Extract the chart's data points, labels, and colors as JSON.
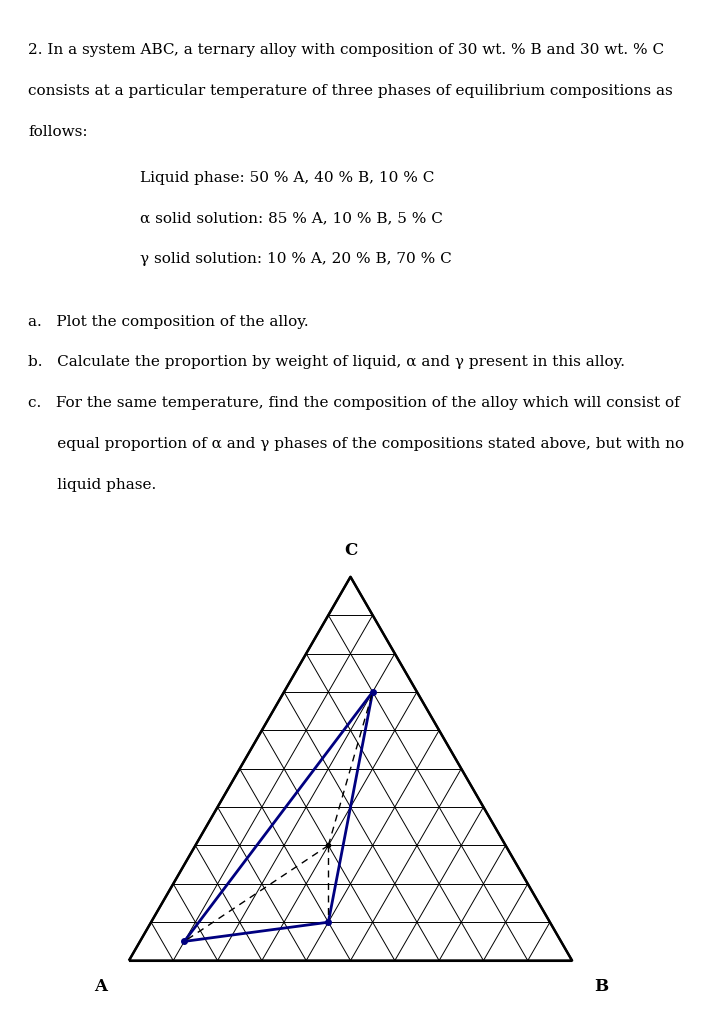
{
  "line1": "2. In a system ABC, a ternary alloy with composition of 30 wt. % B and 30 wt. % C",
  "line2": "consists at a particular temperature of three phases of equilibrium compositions as",
  "line3": "follows:",
  "indent_lines": [
    "Liquid phase: 50 % A, 40 % B, 10 % C",
    "α solid solution: 85 % A, 10 % B, 5 % C",
    "γ solid solution: 10 % A, 20 % B, 70 % C"
  ],
  "q_a": "a.   Plot the composition of the alloy.",
  "q_b": "b.   Calculate the proportion by weight of liquid, α and γ present in this alloy.",
  "q_c1": "c.   For the same temperature, find the composition of the alloy which will consist of",
  "q_c2": "      equal proportion of α and γ phases of the compositions stated above, but with no",
  "q_c3": "      liquid phase.",
  "n_grid": 10,
  "triangle_color": "#000000",
  "triangle_lw": 1.5,
  "grid_lw": 0.7,
  "label_A": "A",
  "label_B": "B",
  "label_C": "C",
  "label_fontsize": 12,
  "tie_color": "#000080",
  "tie_lw": 2.0,
  "dashed_lw": 1.0,
  "text_color": "#000000",
  "bg_color": "#ffffff",
  "font_size": 11.0,
  "indent_font_size": 11.0
}
